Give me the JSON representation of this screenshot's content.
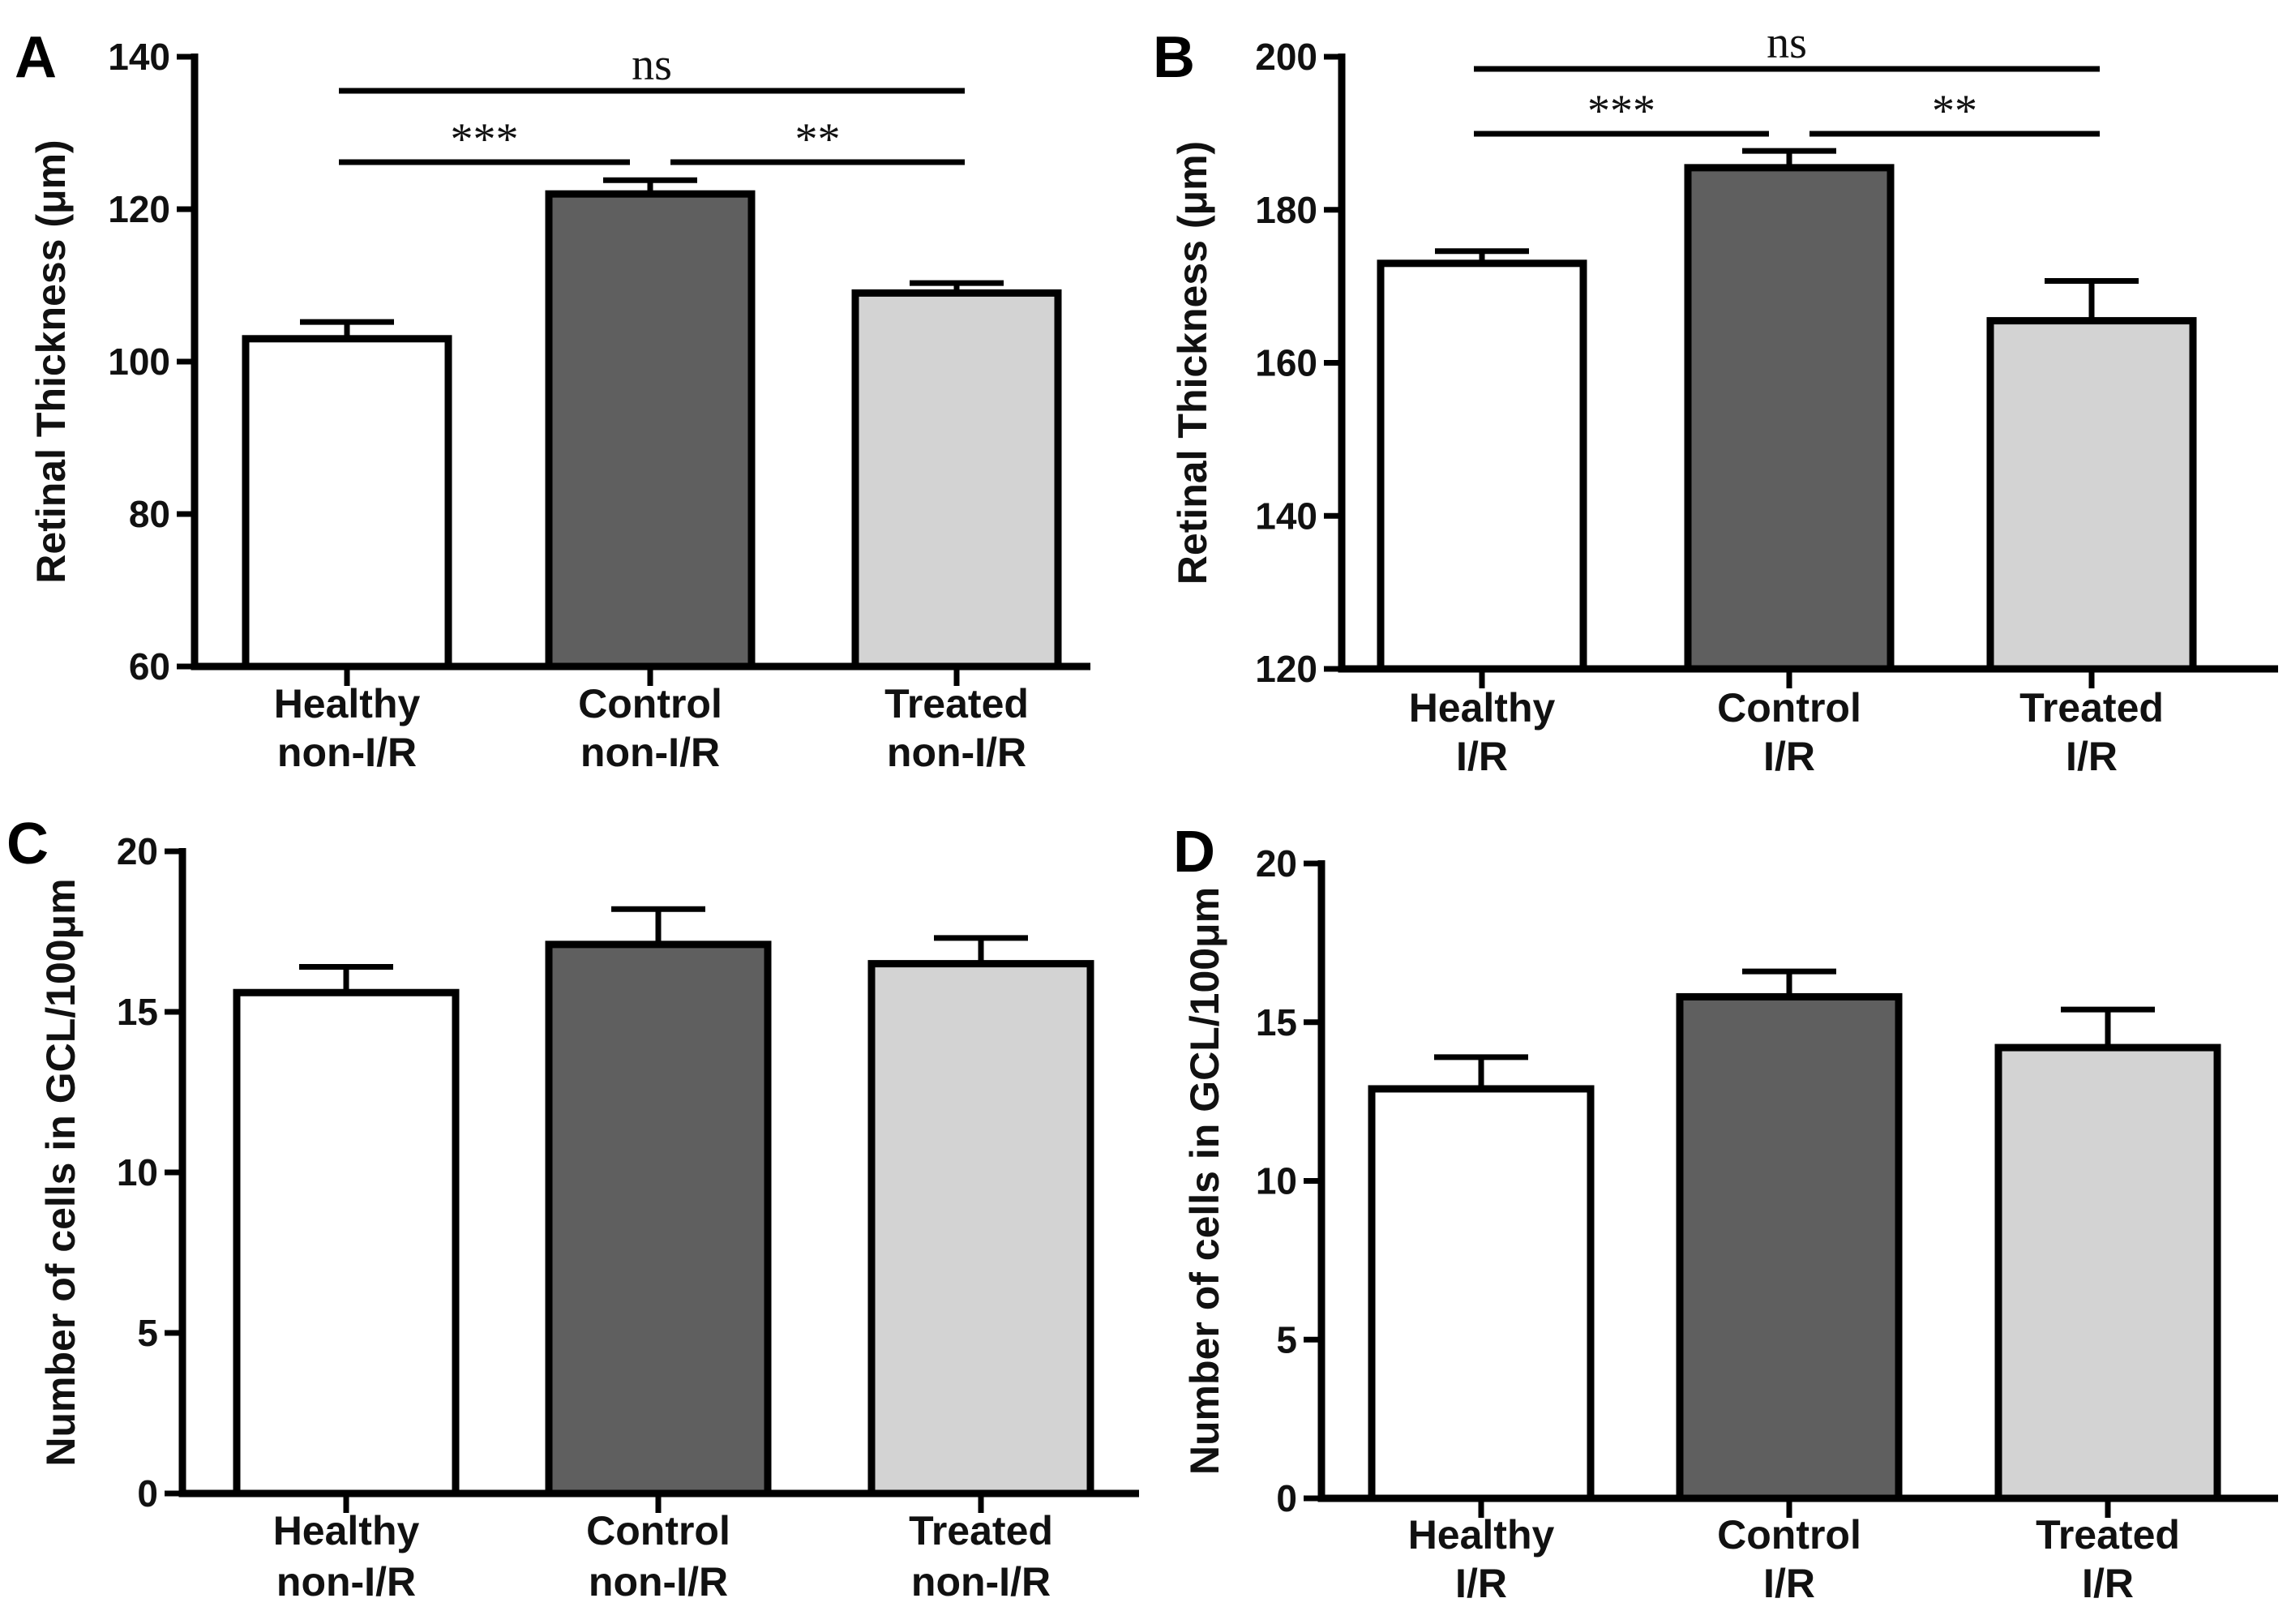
{
  "chart_data": [
    {
      "panel": "A",
      "type": "bar",
      "ylabel": "Retinal Thickness (μm)",
      "ylim": [
        60,
        140
      ],
      "yticks": [
        60,
        80,
        100,
        120,
        140
      ],
      "categories": [
        [
          "Healthy",
          "non-I/R"
        ],
        [
          "Control",
          "non-I/R"
        ],
        [
          "Treated",
          "non-I/R"
        ]
      ],
      "values": [
        103,
        122,
        109
      ],
      "errors": [
        2.2,
        1.8,
        1.3
      ],
      "colors": [
        "#ffffff",
        "#5f5f5f",
        "#d3d3d3"
      ],
      "significance": [
        {
          "from": 0,
          "to": 1,
          "label": "***",
          "level": 1
        },
        {
          "from": 1,
          "to": 2,
          "label": "**",
          "level": 1
        },
        {
          "from": 0,
          "to": 2,
          "label": "ns",
          "level": 2
        }
      ]
    },
    {
      "panel": "B",
      "type": "bar",
      "ylabel": "Retinal Thickness (μm)",
      "ylim": [
        120,
        200
      ],
      "yticks": [
        120,
        140,
        160,
        180,
        200
      ],
      "categories": [
        [
          "Healthy",
          "I/R"
        ],
        [
          "Control",
          "I/R"
        ],
        [
          "Treated",
          "I/R"
        ]
      ],
      "values": [
        173,
        185.5,
        165.5
      ],
      "errors": [
        1.6,
        2.2,
        5.2
      ],
      "colors": [
        "#ffffff",
        "#5f5f5f",
        "#d3d3d3"
      ],
      "significance": [
        {
          "from": 0,
          "to": 1,
          "label": "***",
          "level": 1
        },
        {
          "from": 1,
          "to": 2,
          "label": "**",
          "level": 1
        },
        {
          "from": 0,
          "to": 2,
          "label": "ns",
          "level": 2
        }
      ]
    },
    {
      "panel": "C",
      "type": "bar",
      "ylabel": "Number of cells in GCL/100μm",
      "ylim": [
        0,
        20
      ],
      "yticks": [
        0,
        5,
        10,
        15,
        20
      ],
      "categories": [
        [
          "Healthy",
          "non-I/R"
        ],
        [
          "Control",
          "non-I/R"
        ],
        [
          "Treated",
          "non-I/R"
        ]
      ],
      "values": [
        15.6,
        17.1,
        16.5
      ],
      "errors": [
        0.8,
        1.1,
        0.8
      ],
      "colors": [
        "#ffffff",
        "#5f5f5f",
        "#d3d3d3"
      ],
      "significance": []
    },
    {
      "panel": "D",
      "type": "bar",
      "ylabel": "Number of cells in GCL/100μm",
      "ylim": [
        0,
        20
      ],
      "yticks": [
        0,
        5,
        10,
        15,
        20
      ],
      "categories": [
        [
          "Healthy",
          "I/R"
        ],
        [
          "Control",
          "I/R"
        ],
        [
          "Treated",
          "I/R"
        ]
      ],
      "values": [
        12.9,
        15.8,
        14.2
      ],
      "errors": [
        1.0,
        0.8,
        1.2
      ],
      "colors": [
        "#ffffff",
        "#5f5f5f",
        "#d3d3d3"
      ],
      "significance": []
    }
  ]
}
